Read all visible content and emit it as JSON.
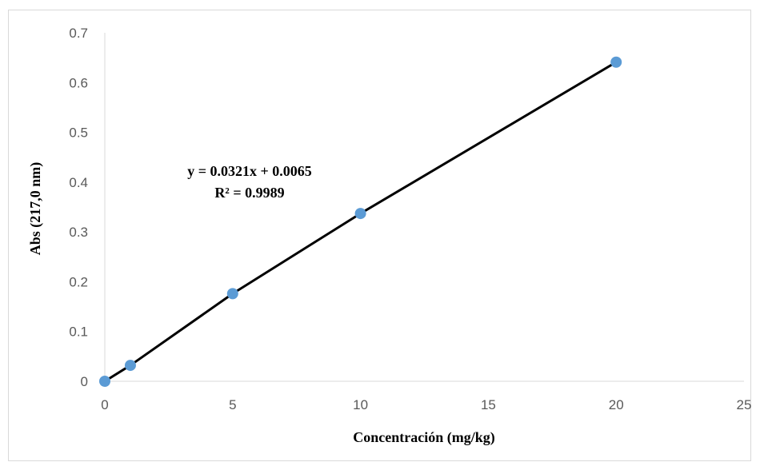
{
  "chart_data": {
    "type": "scatter",
    "x": [
      0,
      1,
      5,
      10,
      20
    ],
    "series": [
      {
        "values": [
          0.0,
          0.032,
          0.176,
          0.337,
          0.641
        ]
      }
    ],
    "trendline": {
      "slope": 0.0321,
      "intercept": 0.0065
    },
    "equation_text": "y = 0.0321x + 0.0065",
    "r2_text": "R² = 0.9989",
    "xlabel": "Concentración (mg/kg)",
    "ylabel": "Abs (217,0 nm)",
    "xlim": [
      0,
      25
    ],
    "ylim": [
      0,
      0.7
    ],
    "x_ticks": [
      "0",
      "5",
      "10",
      "15",
      "20",
      "25"
    ],
    "y_ticks": [
      "0",
      "0.1",
      "0.2",
      "0.3",
      "0.4",
      "0.5",
      "0.6",
      "0.7"
    ],
    "grid": false,
    "legend": "none",
    "colors": {
      "marker": "#5b9bd5",
      "line": "#000000",
      "axis": "#d9d9d9"
    }
  }
}
